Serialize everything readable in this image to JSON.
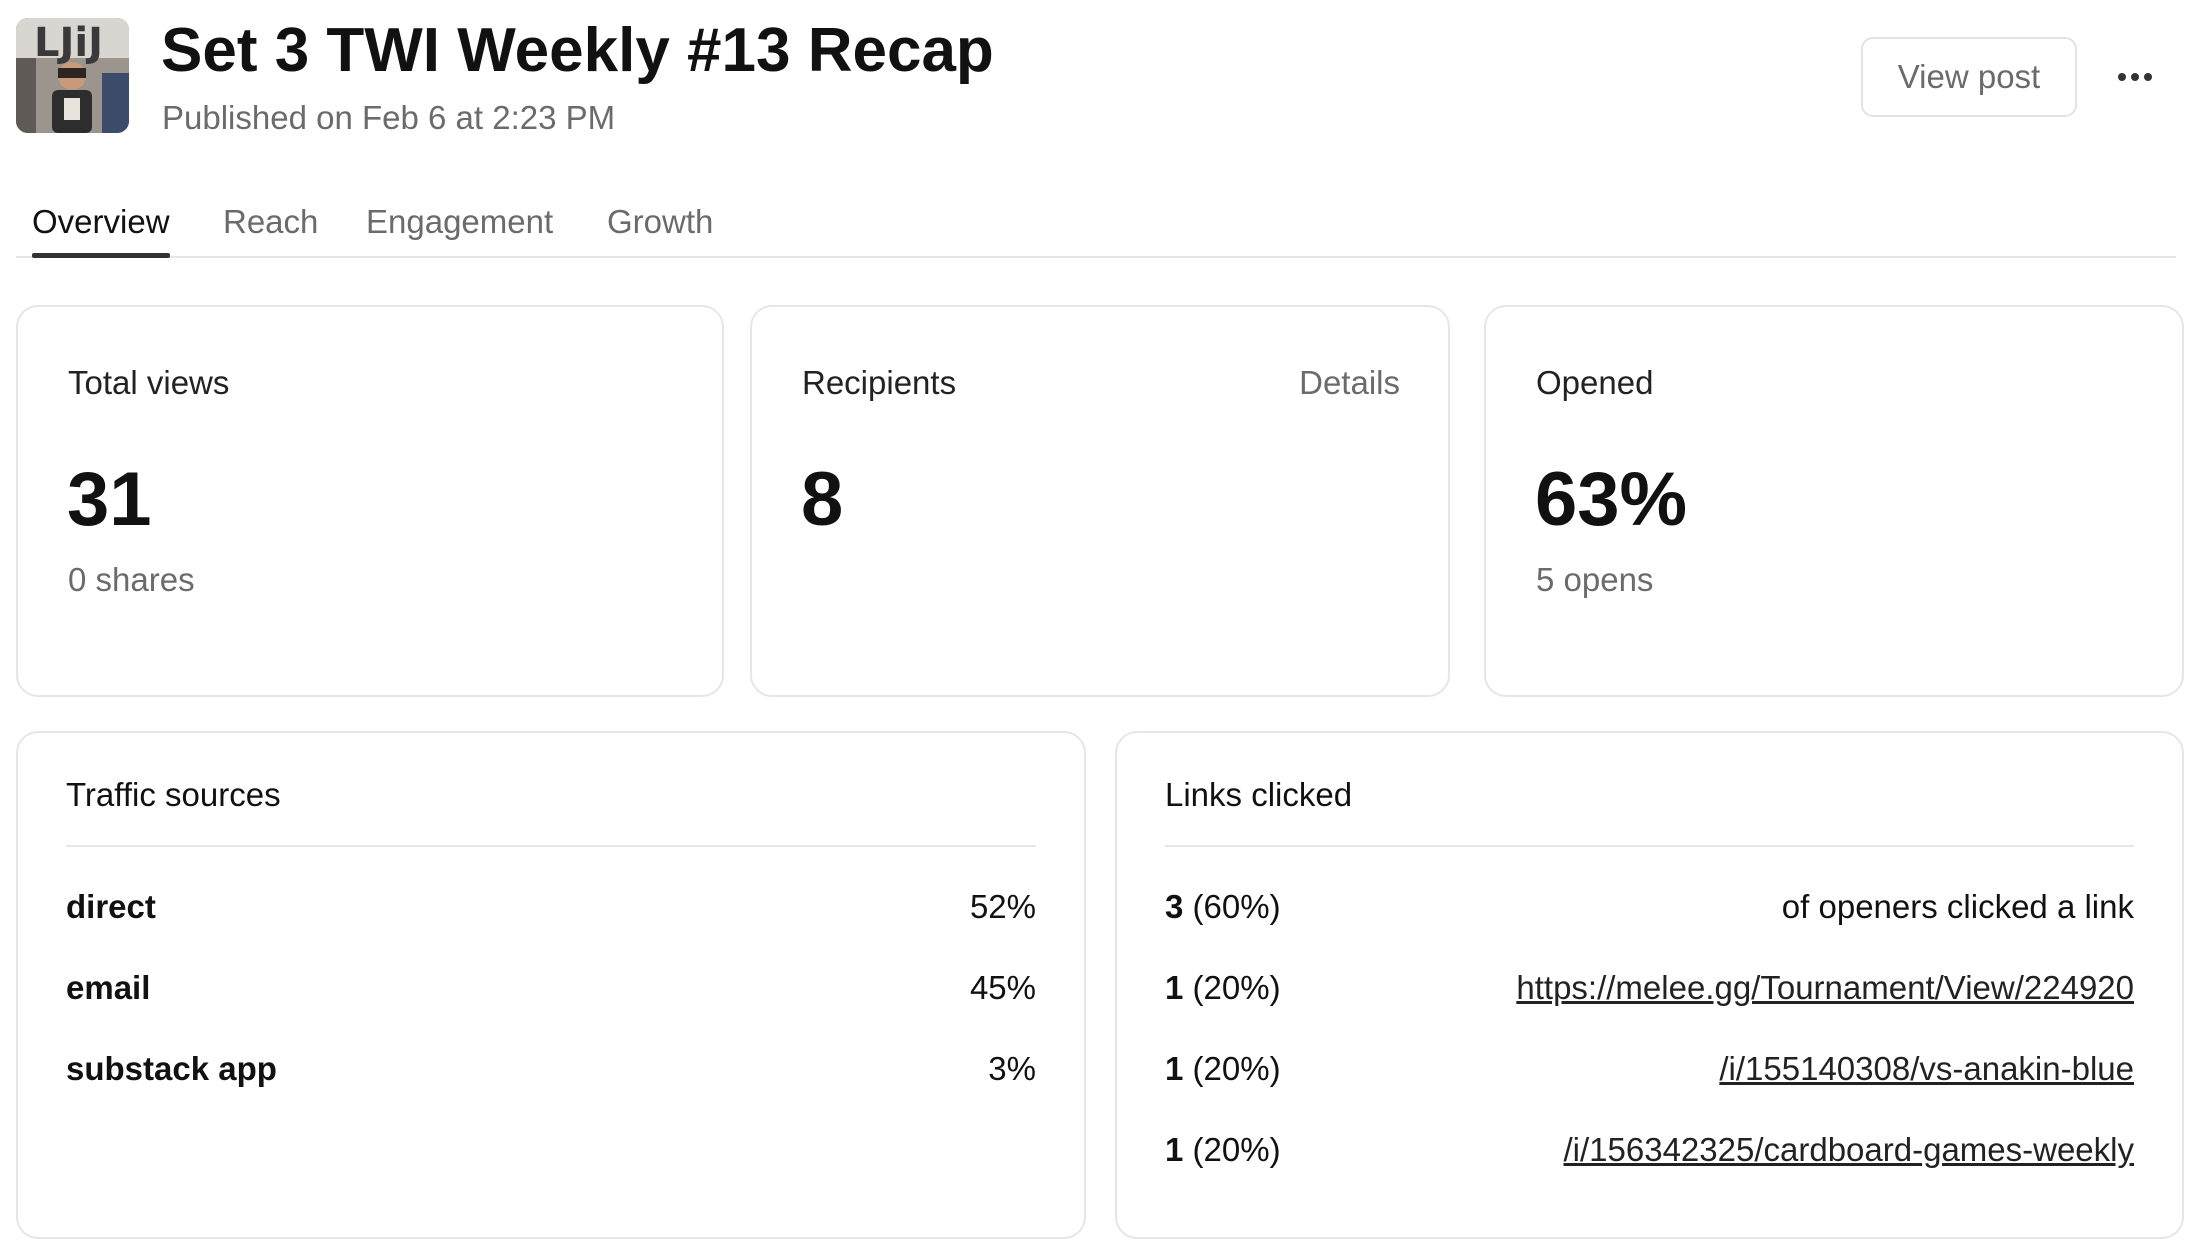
{
  "header": {
    "title": "Set 3 TWI Weekly #13 Recap",
    "published": "Published on Feb 6 at 2:23 PM",
    "view_post_label": "View post",
    "more_icon": "more-horizontal-icon"
  },
  "tabs": [
    {
      "label": "Overview",
      "active": true
    },
    {
      "label": "Reach",
      "active": false
    },
    {
      "label": "Engagement",
      "active": false
    },
    {
      "label": "Growth",
      "active": false
    }
  ],
  "stats": {
    "total_views": {
      "label": "Total views",
      "value": "31",
      "sub": "0 shares"
    },
    "recipients": {
      "label": "Recipients",
      "value": "8",
      "details_label": "Details"
    },
    "opened": {
      "label": "Opened",
      "value": "63%",
      "sub": "5 opens"
    }
  },
  "traffic_sources": {
    "title": "Traffic sources",
    "rows": [
      {
        "source": "direct",
        "percent": "52%"
      },
      {
        "source": "email",
        "percent": "45%"
      },
      {
        "source": "substack app",
        "percent": "3%"
      }
    ]
  },
  "links_clicked": {
    "title": "Links clicked",
    "summary": {
      "count": "3",
      "percent": " (60%)",
      "text": "of openers clicked a link"
    },
    "rows": [
      {
        "count": "1",
        "percent": " (20%)",
        "url": "https://melee.gg/Tournament/View/224920"
      },
      {
        "count": "1",
        "percent": " (20%)",
        "url": "/i/155140308/vs-anakin-blue"
      },
      {
        "count": "1",
        "percent": " (20%)",
        "url": "/i/156342325/cardboard-games-weekly"
      }
    ]
  }
}
